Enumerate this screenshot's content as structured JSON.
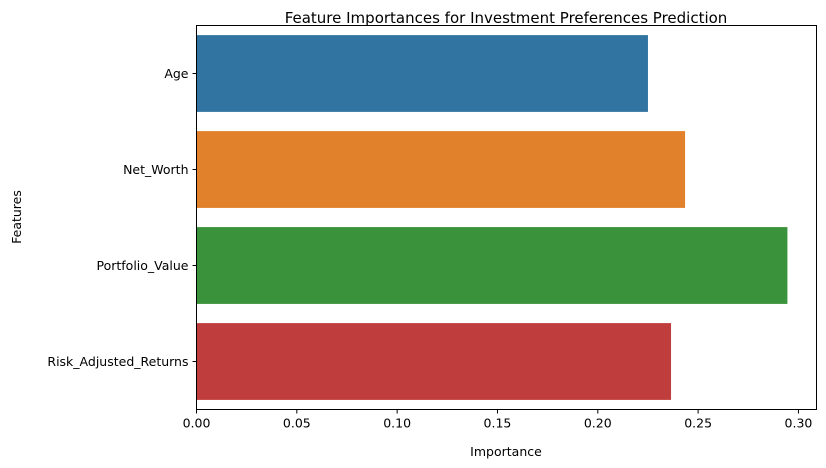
{
  "chart_data": {
    "type": "bar",
    "orientation": "horizontal",
    "title": "Feature Importances for Investment Preferences Prediction",
    "xlabel": "Importance",
    "ylabel": "Features",
    "categories": [
      "Age",
      "Net_Worth",
      "Portfolio_Value",
      "Risk_Adjusted_Returns"
    ],
    "values": [
      0.225,
      0.2435,
      0.2945,
      0.2365
    ],
    "colors": [
      "#3274a1",
      "#e1812c",
      "#3a923a",
      "#c03d3e"
    ],
    "xlim": [
      0,
      0.309
    ],
    "xticks": [
      0.0,
      0.05,
      0.1,
      0.15,
      0.2,
      0.25,
      0.3
    ],
    "xtick_labels": [
      "0.00",
      "0.05",
      "0.10",
      "0.15",
      "0.20",
      "0.25",
      "0.30"
    ],
    "grid": false,
    "legend": "none"
  }
}
